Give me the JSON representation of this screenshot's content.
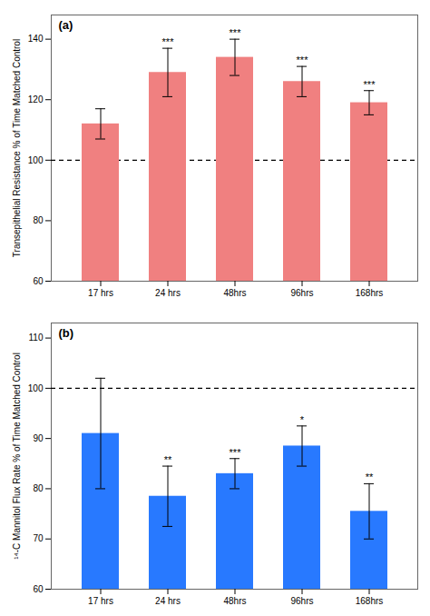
{
  "chart_data": [
    {
      "type": "bar",
      "title": "(a)",
      "categories": [
        "17 hrs",
        "24 hrs",
        "48hrs",
        "96hrs",
        "168hrs"
      ],
      "values": [
        112,
        129,
        134,
        126,
        119
      ],
      "errors": [
        5,
        8,
        6,
        5,
        4
      ],
      "color": "#F08080",
      "ylabel": "Transepithelial Resistance % of Time Matched Control",
      "ylim": [
        60,
        148
      ],
      "yticks": [
        60,
        80,
        100,
        120,
        140
      ],
      "hline": 100,
      "significance": [
        null,
        "***",
        "***",
        "***",
        "***"
      ],
      "grid": false
    },
    {
      "type": "bar",
      "title": "(b)",
      "categories": [
        "17 hrs",
        "24 hrs",
        "48hrs",
        "96hrs",
        "168hrs"
      ],
      "values": [
        91,
        78.5,
        83,
        88.5,
        75.5
      ],
      "errors": [
        11,
        6,
        3,
        4,
        5.5
      ],
      "color": "#2879FF",
      "ylabel": "¹⁴-C Mannitol Flux Rate % of Time Matched Control",
      "ylim": [
        60,
        113
      ],
      "yticks": [
        60,
        70,
        80,
        90,
        100,
        110
      ],
      "hline": 100,
      "significance": [
        null,
        "**",
        "***",
        "*",
        "**"
      ],
      "grid": false
    }
  ]
}
